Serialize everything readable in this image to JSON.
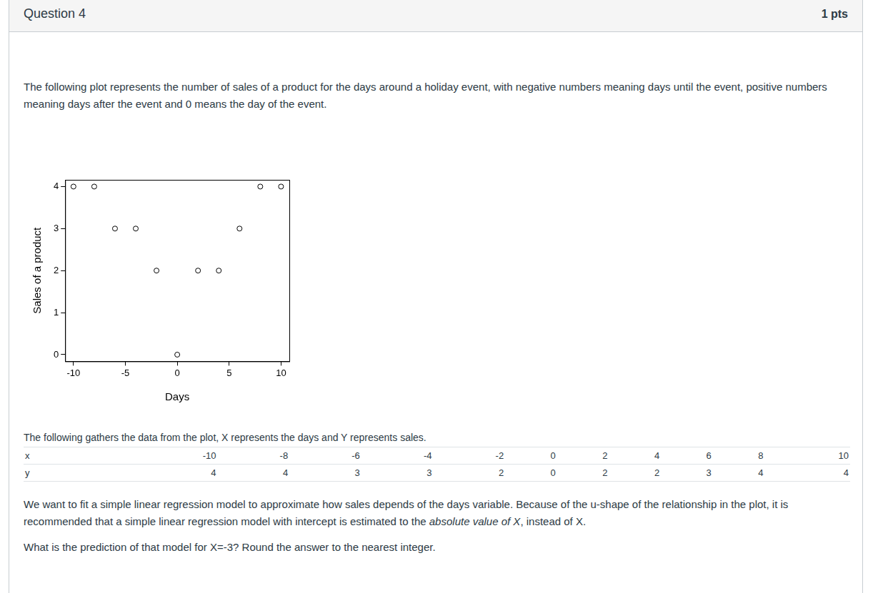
{
  "header": {
    "title": "Question 4",
    "points": "1 pts"
  },
  "intro": "The following plot represents the number of sales of a product for the days around a holiday event, with negative numbers meaning days until the event, positive numbers meaning days after the event and 0 means the day of the event.",
  "chart_data": {
    "type": "scatter",
    "x": [
      -10,
      -8,
      -6,
      -4,
      -2,
      0,
      2,
      4,
      6,
      8,
      10
    ],
    "values": [
      4,
      4,
      3,
      3,
      2,
      0,
      2,
      2,
      3,
      4,
      4
    ],
    "xlabel": "Days",
    "ylabel": "Sales of a product",
    "xlim": [
      -10.8,
      10.8
    ],
    "ylim": [
      -0.16,
      4.16
    ],
    "xticks": [
      -10,
      -5,
      0,
      5,
      10
    ],
    "yticks": [
      0,
      1,
      2,
      3,
      4
    ],
    "color": "#000000",
    "marker": "open_circle",
    "grid": false
  },
  "table_caption": "The following gathers the data from the plot, X represents the days and Y represents sales.",
  "table": {
    "rows": [
      {
        "label": "x",
        "values": [
          -10,
          -8,
          -6,
          -4,
          -2,
          0,
          2,
          4,
          6,
          8,
          10
        ]
      },
      {
        "label": "y",
        "values": [
          4,
          4,
          3,
          3,
          2,
          0,
          2,
          2,
          3,
          4,
          4
        ]
      }
    ]
  },
  "paragraphs": [
    [
      {
        "text": "We want to fit a simple linear regression model to approximate how sales depends of the days variable. Because of the u-shape of the relationship in the plot, it is recommended that a simple linear regression model with intercept is estimated to the "
      },
      {
        "text": "absolute value of X",
        "italic": true
      },
      {
        "text": ", instead of X."
      }
    ],
    [
      {
        "text": "What is the prediction of that model for X=-3? Round the answer to the nearest integer."
      }
    ]
  ]
}
